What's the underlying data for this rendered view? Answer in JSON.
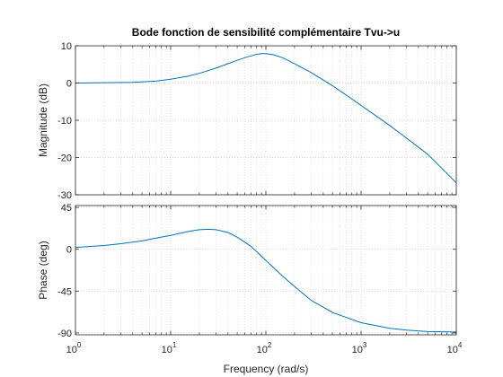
{
  "chart_data": {
    "type": "line",
    "title": "Bode fonction de sensibilité complémentaire Tvu->u",
    "xlabel": "Frequency  (rad/s)",
    "xscale": "log",
    "xlim": [
      1,
      10000
    ],
    "x_ticks": [
      1,
      10,
      100,
      1000,
      10000
    ],
    "x_tick_labels": [
      {
        "base": "10",
        "exp": "0"
      },
      {
        "base": "10",
        "exp": "1"
      },
      {
        "base": "10",
        "exp": "2"
      },
      {
        "base": "10",
        "exp": "3"
      },
      {
        "base": "10",
        "exp": "4"
      }
    ],
    "grid": true,
    "line_color": "#0072BD",
    "panels": [
      {
        "name": "magnitude",
        "ylabel": "Magnitude (dB)",
        "ylim": [
          -30,
          10
        ],
        "y_ticks": [
          10,
          0,
          -10,
          -20,
          -30
        ],
        "y_tick_labels": [
          "10",
          "0",
          "-10",
          "-20",
          "-30"
        ],
        "series": [
          {
            "x": [
              1,
              2,
              4,
              7,
              10,
              15,
              20,
              30,
              40,
              50,
              60,
              70,
              80,
              90,
              100,
              120,
              150,
              200,
              300,
              500,
              1000,
              2000,
              3000,
              5000,
              10000
            ],
            "y": [
              0,
              0.1,
              0.2,
              0.5,
              1.0,
              1.8,
              2.6,
              4.0,
              5.2,
              6.1,
              6.8,
              7.3,
              7.7,
              7.9,
              7.9,
              7.6,
              6.8,
              5.2,
              2.8,
              -0.7,
              -6.0,
              -11.4,
              -14.8,
              -19.1,
              -26.8
            ]
          }
        ]
      },
      {
        "name": "phase",
        "ylabel": "Phase (deg)",
        "ylim": [
          -92,
          47
        ],
        "y_ticks": [
          45,
          0,
          -45,
          -90
        ],
        "y_tick_labels": [
          "45",
          "0",
          "-45",
          "-90"
        ],
        "series": [
          {
            "x": [
              1,
              2,
              3,
              5,
              7,
              10,
              15,
              20,
              25,
              30,
              40,
              50,
              70,
              100,
              150,
              200,
              300,
              500,
              1000,
              2000,
              3000,
              5000,
              10000
            ],
            "y": [
              2,
              4,
              6,
              9,
              12,
              15,
              19,
              21,
              21.5,
              21,
              18,
              13,
              3,
              -12,
              -29,
              -40,
              -55,
              -68,
              -79,
              -85,
              -87,
              -88.5,
              -89
            ]
          }
        ]
      }
    ]
  }
}
